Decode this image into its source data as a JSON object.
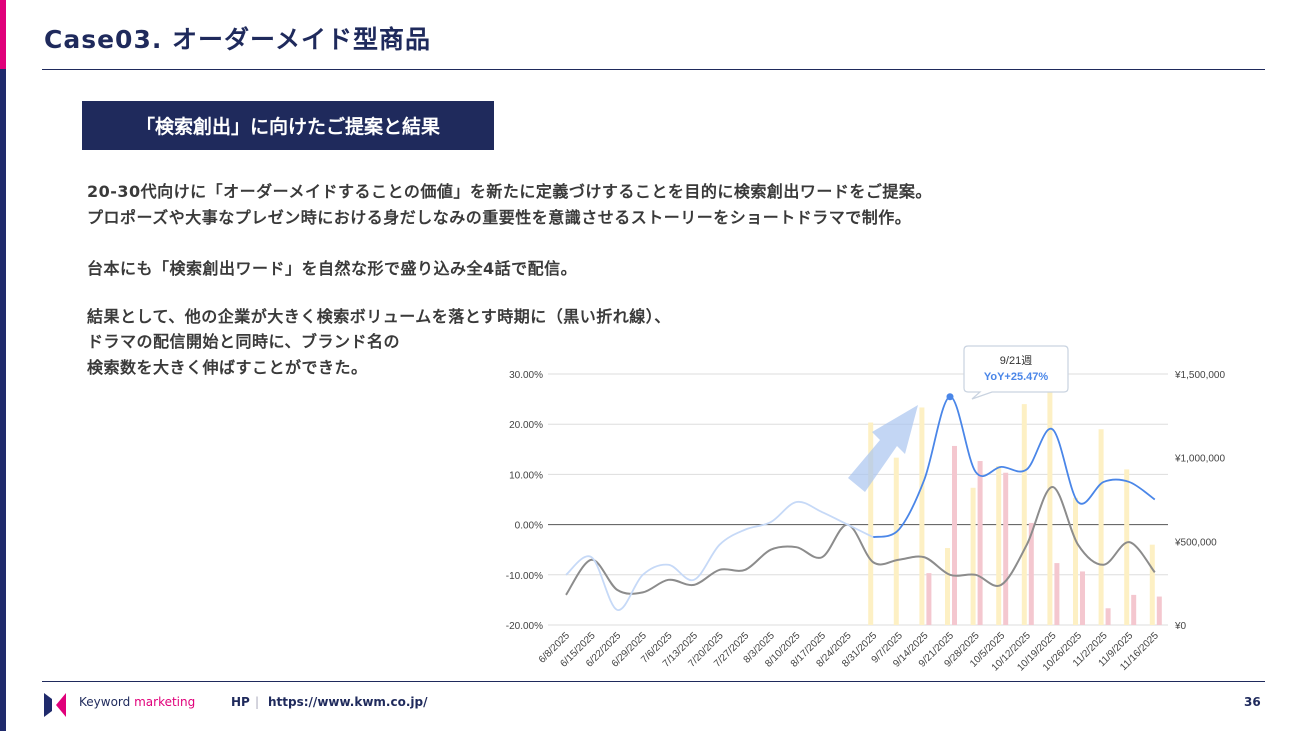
{
  "header": {
    "title": "Case03. オーダーメイド型商品"
  },
  "section": {
    "heading": "「検索創出」に向けたご提案と結果"
  },
  "body": {
    "lines": [
      "20-30代向けに「オーダーメイドすることの価値」を新たに定義づけすることを目的に検索創出ワードをご提案。",
      "プロポーズや大事なプレゼン時における身だしなみの重要性を意識させるストーリーをショートドラマで制作。",
      "台本にも「検索創出ワード」を自然な形で盛り込み全4話で配信。",
      "結果として、他の企業が大きく検索ボリュームを落とす時期に（黒い折れ線）、",
      "ドラマの配信開始と同時に、ブランド名の",
      "検索数を大きく伸ばすことができた。"
    ]
  },
  "footer": {
    "logo_text_1": "Keyword",
    "logo_text_2": "marketing",
    "hp_label": "HP",
    "separator": "|",
    "url": "https://www.kwm.co.jp/",
    "page_number": "36"
  },
  "colors": {
    "navy": "#1f2a5c",
    "pink": "#e0007a",
    "blue": "#4a86e8",
    "light_blue": "#c6d9f7",
    "gray": "#8c8c8c",
    "yellow_bar": "#fdf0c4",
    "pink_bar": "#f4c7cf"
  },
  "chart_data": {
    "type": "bar+line",
    "categories": [
      "6/8/2025",
      "6/15/2025",
      "6/22/2025",
      "6/29/2025",
      "7/6/2025",
      "7/13/2025",
      "7/20/2025",
      "7/27/2025",
      "8/3/2025",
      "8/10/2025",
      "8/17/2025",
      "8/24/2025",
      "8/31/2025",
      "9/7/2025",
      "9/14/2025",
      "9/21/2025",
      "9/28/2025",
      "10/5/2025",
      "10/12/2025",
      "10/19/2025",
      "10/26/2025",
      "11/2/2025",
      "11/9/2025",
      "11/16/2025"
    ],
    "left_axis": {
      "ylim": [
        -20,
        30
      ],
      "ticks": [
        "30.00%",
        "20.00%",
        "10.00%",
        "0.00%",
        "-10.00%",
        "-20.00%"
      ],
      "tick_values": [
        30,
        20,
        10,
        0,
        -10,
        -20
      ]
    },
    "right_axis": {
      "ylim": [
        0,
        1500000
      ],
      "ticks": [
        "¥1,500,000",
        "¥1,000,000",
        "¥500,000",
        "¥0"
      ],
      "tick_values": [
        1500000,
        1000000,
        500000,
        0
      ]
    },
    "lines": [
      {
        "id": "gray",
        "color": "#8c8c8c",
        "values": [
          -14,
          -7,
          -13,
          -13.5,
          -11,
          -12,
          -9,
          -9,
          -5,
          -4.5,
          -6.5,
          0,
          -7.5,
          -7,
          -6.5,
          -10,
          -10,
          -12,
          -4,
          7.5,
          -4,
          -8,
          -3.5,
          -9.5
        ]
      },
      {
        "id": "light-blue",
        "color": "#c6d9f7",
        "values": [
          -10,
          -6.5,
          -17,
          -10,
          -8,
          -11,
          -4,
          -1,
          0.5,
          4.5,
          2.5,
          0,
          -2.5,
          null,
          null,
          null,
          null,
          null,
          null,
          null,
          null,
          null,
          null,
          null
        ]
      },
      {
        "id": "blue",
        "color": "#4a86e8",
        "values": [
          null,
          null,
          null,
          null,
          null,
          null,
          null,
          null,
          null,
          null,
          null,
          null,
          -2.5,
          -1,
          9,
          25.47,
          10.5,
          11.5,
          11,
          19,
          4.5,
          8.5,
          8.5,
          5
        ]
      }
    ],
    "bars": [
      {
        "id": "yellow",
        "color": "#fdf0c4",
        "values": [
          0,
          0,
          0,
          0,
          0,
          0,
          0,
          0,
          0,
          0,
          0,
          0,
          1210000,
          1000000,
          1300000,
          460000,
          820000,
          950000,
          1320000,
          1390000,
          760000,
          1170000,
          930000,
          480000
        ]
      },
      {
        "id": "pink",
        "color": "#f4c7cf",
        "values": [
          0,
          0,
          0,
          0,
          0,
          0,
          0,
          0,
          0,
          0,
          0,
          0,
          0,
          0,
          310000,
          1070000,
          980000,
          910000,
          610000,
          370000,
          320000,
          100000,
          180000,
          170000
        ]
      }
    ],
    "annotation": {
      "week": "9/21週",
      "text": "YoY+25.47%",
      "category_index": 15
    }
  }
}
